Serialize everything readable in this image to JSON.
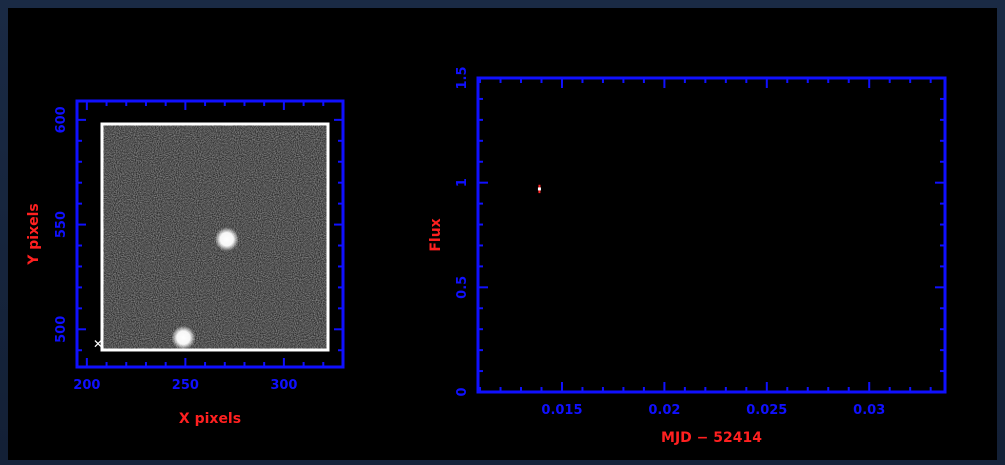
{
  "colors": {
    "axis": "#1010ff",
    "label": "#ff2020",
    "image_frame": "#ffffff",
    "data_point": "#ffffff",
    "error_bar": "#ff2020",
    "background": "#000000"
  },
  "chart_data": [
    {
      "type": "heatmap",
      "description_type": "image",
      "xlabel": "X pixels",
      "ylabel": "Y pixels",
      "xlim": [
        195,
        330
      ],
      "ylim": [
        482,
        609
      ],
      "xticks": [
        200,
        250,
        300
      ],
      "yticks": [
        500,
        550,
        600
      ],
      "stars": [
        {
          "x": 271,
          "y": 543,
          "brightness": 1.0
        },
        {
          "x": 249,
          "y": 496,
          "brightness": 1.0
        }
      ]
    },
    {
      "type": "scatter",
      "xlabel": "MJD − 52414",
      "ylabel": "Flux",
      "xlim": [
        0.0109,
        0.0337
      ],
      "ylim": [
        0,
        1.5
      ],
      "xticks": [
        0.015,
        0.02,
        0.025,
        0.03
      ],
      "xtick_labels": [
        "0.015",
        "0.02",
        "0.025",
        "0.03"
      ],
      "yticks": [
        0,
        0.5,
        1,
        1.5
      ],
      "ytick_labels": [
        "0",
        "0.5",
        "1",
        "1.5"
      ],
      "series": [
        {
          "x": [
            0.0139
          ],
          "y": [
            0.97
          ],
          "yerr": [
            0.02
          ]
        }
      ]
    }
  ]
}
